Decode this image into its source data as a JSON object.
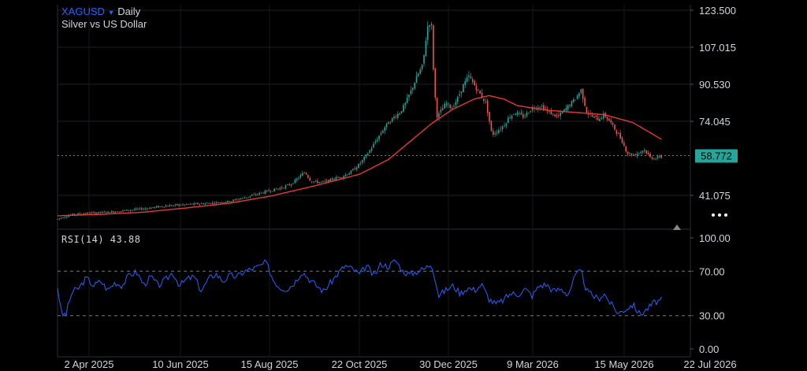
{
  "header": {
    "symbol": "XAGUSD",
    "dropdown_icon": "triangle-down-icon",
    "timeframe": "Daily",
    "description": "Silver vs US Dollar"
  },
  "price_axis": {
    "ticks": [
      "123.500",
      "107.015",
      "90.530",
      "74.045",
      "41.075"
    ],
    "tick_values": [
      123.5,
      107.015,
      90.53,
      74.045,
      41.075
    ]
  },
  "last_price": {
    "label": "58.772",
    "value": 58.772,
    "color": "#26a69a"
  },
  "rsi": {
    "label": "RSI(14) 43.88",
    "ticks": [
      "100.00",
      "70.00",
      "30.00",
      "0.00"
    ],
    "tick_values": [
      100,
      70,
      30,
      0
    ],
    "color": "#2962ff"
  },
  "time_axis": {
    "labels": [
      "2 Apr 2025",
      "10 Jun 2025",
      "15 Aug 2025",
      "22 Oct 2025",
      "30 Dec 2025",
      "9 Mar 2026",
      "15 May 2026",
      "22 Jul 2026"
    ]
  },
  "colors": {
    "up_candle": "#26a69a",
    "down_candle": "#ef5350",
    "moving_average": "#e53935",
    "background": "#000000",
    "text": "#d1d4dc"
  },
  "toolbar": {
    "more_icon": "more-dots-icon",
    "scroll_icon": "scroll-to-latest-icon"
  },
  "chart_data": [
    {
      "type": "candlestick",
      "title": "XAGUSD",
      "subtitle": "Silver vs US Dollar",
      "ylim": [
        27,
        128
      ],
      "close_path": [
        [
          0,
          30.5
        ],
        [
          4,
          31.5
        ],
        [
          10,
          32.5
        ],
        [
          18,
          33.0
        ],
        [
          26,
          33.3
        ],
        [
          34,
          33.5
        ],
        [
          42,
          34.0
        ],
        [
          50,
          34.5
        ],
        [
          58,
          35.0
        ],
        [
          66,
          35.6
        ],
        [
          74,
          36.3
        ],
        [
          82,
          36.7
        ],
        [
          90,
          37.0
        ],
        [
          98,
          37.3
        ],
        [
          106,
          37.6
        ],
        [
          114,
          38.0
        ],
        [
          120,
          38.4
        ],
        [
          126,
          39.5
        ],
        [
          132,
          40.4
        ],
        [
          138,
          41.5
        ],
        [
          144,
          42.6
        ],
        [
          150,
          43.5
        ],
        [
          156,
          44.5
        ],
        [
          162,
          46.0
        ],
        [
          166,
          48.0
        ],
        [
          170,
          50.5
        ],
        [
          172,
          51.5
        ],
        [
          176,
          47.5
        ],
        [
          180,
          47.0
        ],
        [
          186,
          47.0
        ],
        [
          192,
          48.5
        ],
        [
          198,
          49.5
        ],
        [
          204,
          51.5
        ],
        [
          210,
          55.0
        ],
        [
          216,
          60.0
        ],
        [
          222,
          66.0
        ],
        [
          228,
          72.0
        ],
        [
          234,
          76.0
        ],
        [
          238,
          78.0
        ],
        [
          242,
          82.0
        ],
        [
          246,
          88.0
        ],
        [
          250,
          94.0
        ],
        [
          254,
          99.0
        ],
        [
          256,
          110.0
        ],
        [
          258,
          119.0
        ],
        [
          260,
          116.0
        ],
        [
          262,
          88.0
        ],
        [
          264,
          76.0
        ],
        [
          266,
          78.0
        ],
        [
          270,
          82.0
        ],
        [
          274,
          80.0
        ],
        [
          278,
          84.0
        ],
        [
          282,
          90.0
        ],
        [
          286,
          94.0
        ],
        [
          290,
          90.0
        ],
        [
          294,
          86.0
        ],
        [
          298,
          82.0
        ],
        [
          302,
          68.0
        ],
        [
          306,
          70.0
        ],
        [
          310,
          72.0
        ],
        [
          314,
          76.0
        ],
        [
          318,
          78.0
        ],
        [
          324,
          76.0
        ],
        [
          330,
          80.0
        ],
        [
          336,
          81.0
        ],
        [
          342,
          78.0
        ],
        [
          348,
          76.0
        ],
        [
          354,
          80.0
        ],
        [
          360,
          84.0
        ],
        [
          364,
          88.0
        ],
        [
          368,
          78.0
        ],
        [
          372,
          76.0
        ],
        [
          376,
          75.0
        ],
        [
          380,
          77.0
        ],
        [
          384,
          74.0
        ],
        [
          388,
          70.0
        ],
        [
          392,
          66.0
        ],
        [
          396,
          60.0
        ],
        [
          400,
          59.0
        ],
        [
          404,
          60.0
        ],
        [
          408,
          61.5
        ],
        [
          412,
          58.0
        ],
        [
          416,
          57.5
        ],
        [
          420,
          58.77
        ]
      ],
      "moving_average": [
        [
          0,
          32.0
        ],
        [
          30,
          32.6
        ],
        [
          60,
          33.6
        ],
        [
          90,
          35.5
        ],
        [
          120,
          37.6
        ],
        [
          150,
          41.0
        ],
        [
          180,
          45.5
        ],
        [
          210,
          50.5
        ],
        [
          230,
          57.0
        ],
        [
          245,
          65.0
        ],
        [
          260,
          73.0
        ],
        [
          275,
          79.5
        ],
        [
          290,
          84.0
        ],
        [
          300,
          85.5
        ],
        [
          310,
          84.0
        ],
        [
          320,
          81.0
        ],
        [
          340,
          79.0
        ],
        [
          360,
          78.0
        ],
        [
          380,
          77.0
        ],
        [
          400,
          73.5
        ],
        [
          420,
          66.0
        ]
      ]
    },
    {
      "type": "line",
      "name": "RSI(14)",
      "ylim": [
        0,
        100
      ],
      "reference_lines": [
        70,
        30
      ],
      "x": [
        0,
        3,
        6,
        10,
        15,
        20,
        25,
        30,
        35,
        40,
        45,
        50,
        55,
        60,
        65,
        70,
        75,
        80,
        85,
        90,
        95,
        100,
        105,
        110,
        115,
        120,
        125,
        130,
        135,
        140,
        145,
        150,
        155,
        160,
        165,
        170,
        175,
        180,
        185,
        190,
        195,
        200,
        205,
        210,
        215,
        220,
        225,
        230,
        235,
        240,
        245,
        250,
        255,
        260,
        262,
        265,
        270,
        275,
        280,
        285,
        290,
        295,
        300,
        305,
        310,
        315,
        320,
        325,
        330,
        335,
        340,
        345,
        350,
        355,
        360,
        364,
        368,
        372,
        376,
        380,
        385,
        390,
        395,
        400,
        405,
        410,
        415,
        420
      ],
      "values": [
        56,
        30,
        32,
        51,
        55,
        64,
        57,
        61,
        53,
        60,
        57,
        67,
        69,
        58,
        65,
        57,
        62,
        69,
        57,
        63,
        65,
        52,
        63,
        68,
        61,
        66,
        65,
        70,
        72,
        74,
        78,
        62,
        55,
        54,
        60,
        70,
        63,
        57,
        52,
        60,
        68,
        75,
        72,
        67,
        75,
        65,
        77,
        74,
        80,
        70,
        67,
        70,
        72,
        77,
        67,
        48,
        53,
        57,
        50,
        55,
        53,
        58,
        45,
        40,
        44,
        50,
        49,
        54,
        48,
        57,
        58,
        52,
        54,
        49,
        66,
        70,
        52,
        48,
        45,
        50,
        40,
        32,
        36,
        40,
        31,
        36,
        42,
        43.88
      ]
    }
  ]
}
